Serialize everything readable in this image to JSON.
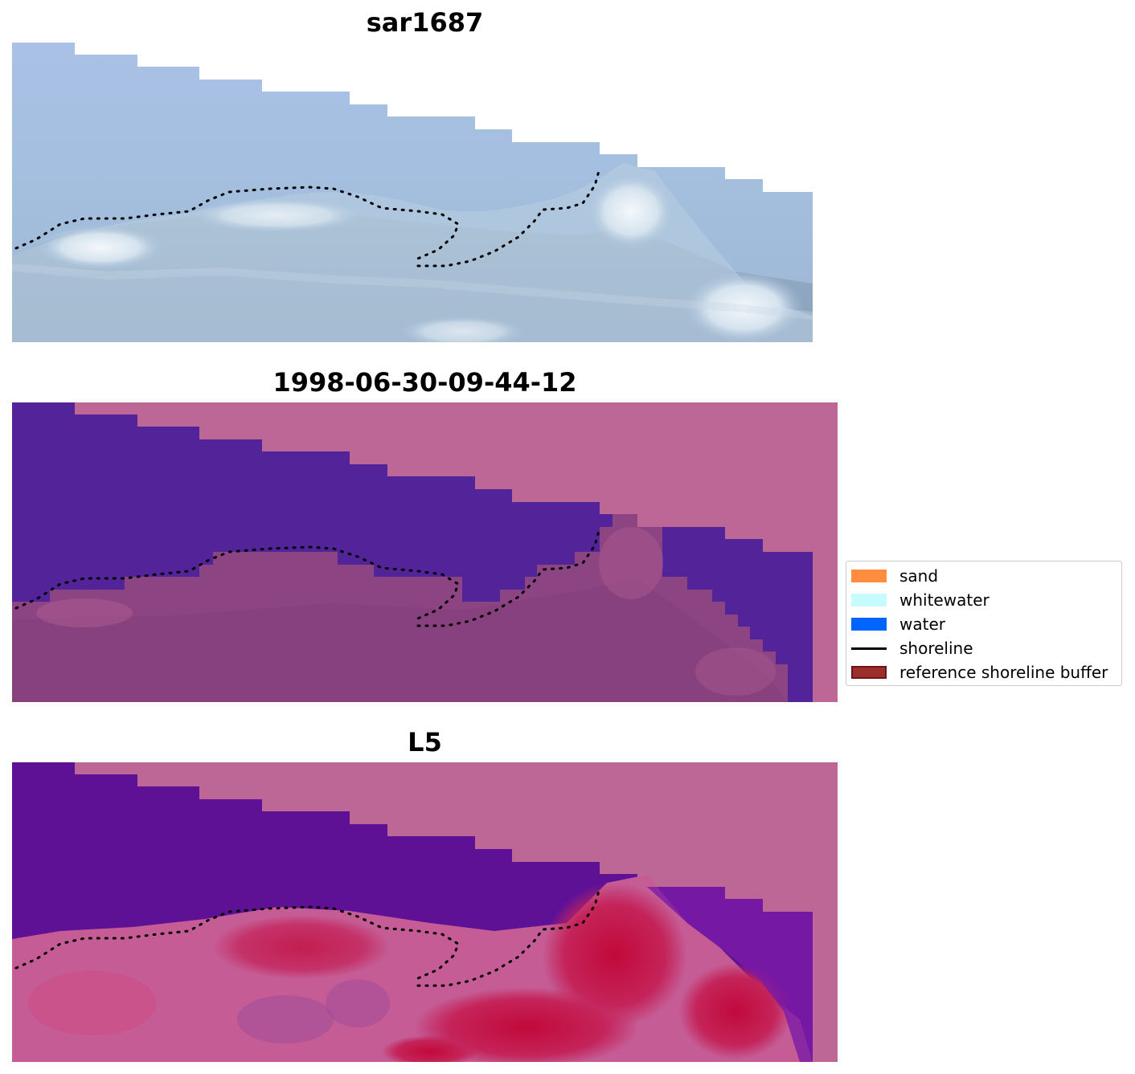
{
  "panels": [
    {
      "title": "sar1687",
      "kind": "rgb-image"
    },
    {
      "title": "1998-06-30-09-44-12",
      "kind": "classification"
    },
    {
      "title": "L5",
      "kind": "probability"
    }
  ],
  "legend": {
    "items": [
      {
        "label": "sand",
        "color": "#ff8c3f",
        "type": "patch"
      },
      {
        "label": "whitewater",
        "color": "#c8fcfc",
        "type": "patch"
      },
      {
        "label": "water",
        "color": "#0064ff",
        "type": "patch"
      },
      {
        "label": "shoreline",
        "color": "#000000",
        "type": "line"
      },
      {
        "label": "reference shoreline buffer",
        "color": "#9b2f2f",
        "type": "patch"
      }
    ]
  },
  "colors": {
    "background": "#ffffff",
    "masked_area": "#bd6796",
    "water_class": "#53239a",
    "land_class": "#8c4482",
    "sky_blue": "#a9c1e6",
    "surf_white": "#eef3f6",
    "prob_low": "#5f1196",
    "prob_high": "#c2093a"
  }
}
